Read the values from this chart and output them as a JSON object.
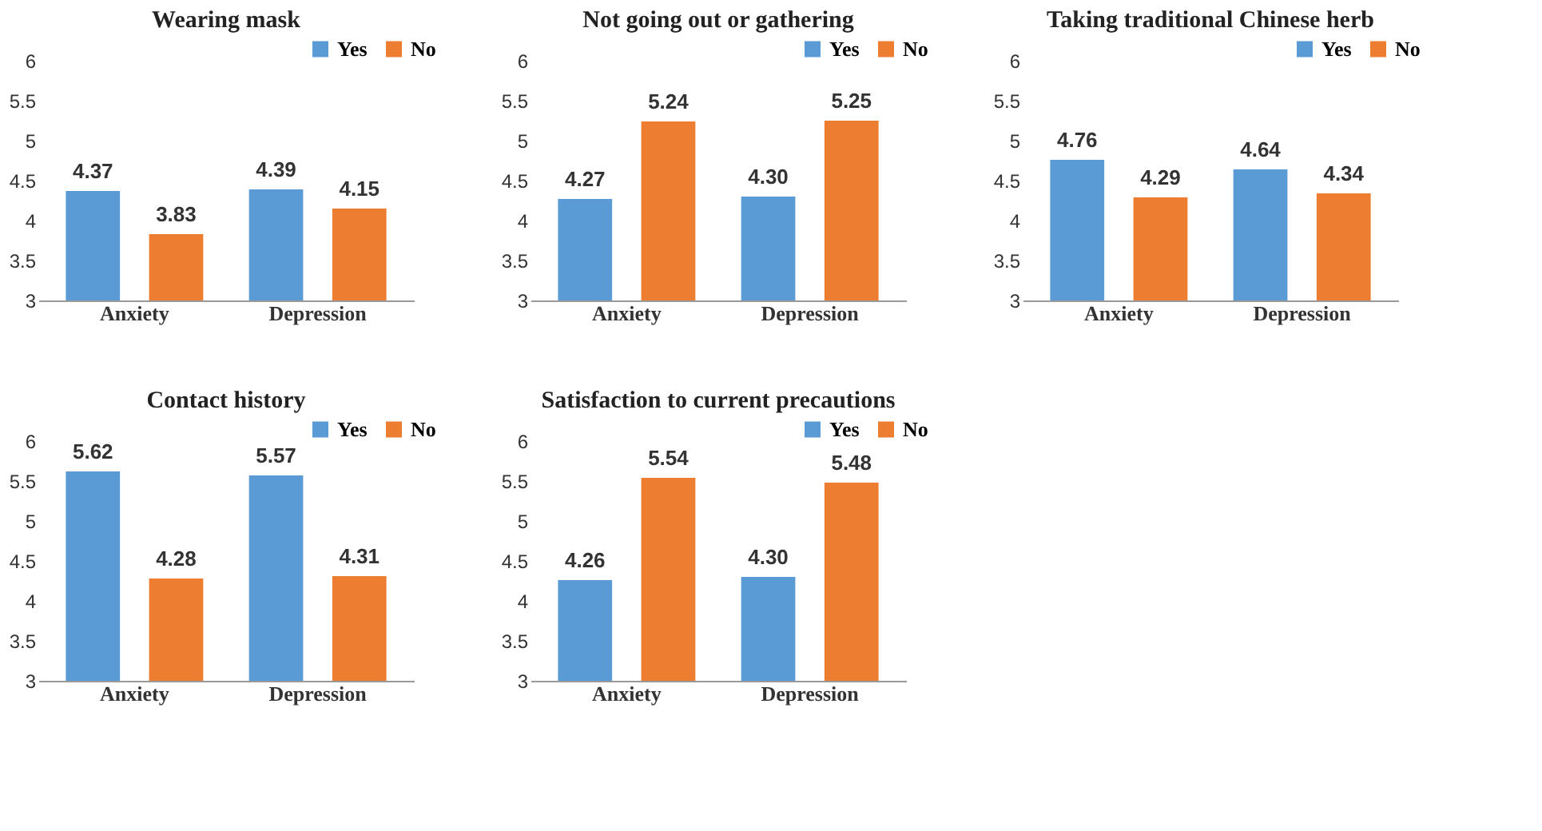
{
  "chart_data": [
    {
      "type": "bar",
      "title": "Wearing mask",
      "categories": [
        "Anxiety",
        "Depression"
      ],
      "ylim": [
        3,
        6
      ],
      "yticks": [
        3,
        3.5,
        4,
        4.5,
        5,
        5.5,
        6
      ],
      "legend": "top right",
      "grid": false,
      "series": [
        {
          "name": "Yes",
          "color": "#5b9bd5",
          "values": [
            4.37,
            4.39
          ],
          "value_labels": [
            "4.37",
            "4.39"
          ]
        },
        {
          "name": "No",
          "color": "#ed7d31",
          "values": [
            3.83,
            4.15
          ],
          "value_labels": [
            "3.83",
            "4.15"
          ]
        }
      ]
    },
    {
      "type": "bar",
      "title": "Not going out or gathering",
      "categories": [
        "Anxiety",
        "Depression"
      ],
      "ylim": [
        3,
        6
      ],
      "yticks": [
        3,
        3.5,
        4,
        4.5,
        5,
        5.5,
        6
      ],
      "legend": "top right",
      "grid": false,
      "series": [
        {
          "name": "Yes",
          "color": "#5b9bd5",
          "values": [
            4.27,
            4.3
          ],
          "value_labels": [
            "4.27",
            "4.30"
          ]
        },
        {
          "name": "No",
          "color": "#ed7d31",
          "values": [
            5.24,
            5.25
          ],
          "value_labels": [
            "5.24",
            "5.25"
          ]
        }
      ]
    },
    {
      "type": "bar",
      "title": "Taking traditional Chinese herb",
      "categories": [
        "Anxiety",
        "Depression"
      ],
      "ylim": [
        3,
        6
      ],
      "yticks": [
        3,
        3.5,
        4,
        4.5,
        5,
        5.5,
        6
      ],
      "legend": "top right",
      "grid": false,
      "series": [
        {
          "name": "Yes",
          "color": "#5b9bd5",
          "values": [
            4.76,
            4.64
          ],
          "value_labels": [
            "4.76",
            "4.64"
          ]
        },
        {
          "name": "No",
          "color": "#ed7d31",
          "values": [
            4.29,
            4.34
          ],
          "value_labels": [
            "4.29",
            "4.34"
          ]
        }
      ]
    },
    {
      "type": "bar",
      "title": "Contact history",
      "categories": [
        "Anxiety",
        "Depression"
      ],
      "ylim": [
        3,
        6
      ],
      "yticks": [
        3,
        3.5,
        4,
        4.5,
        5,
        5.5,
        6
      ],
      "legend": "top right",
      "grid": false,
      "series": [
        {
          "name": "Yes",
          "color": "#5b9bd5",
          "values": [
            5.62,
            5.57
          ],
          "value_labels": [
            "5.62",
            "5.57"
          ]
        },
        {
          "name": "No",
          "color": "#ed7d31",
          "values": [
            4.28,
            4.31
          ],
          "value_labels": [
            "4.28",
            "4.31"
          ]
        }
      ]
    },
    {
      "type": "bar",
      "title": "Satisfaction to current precautions",
      "categories": [
        "Anxiety",
        "Depression"
      ],
      "ylim": [
        3,
        6
      ],
      "yticks": [
        3,
        3.5,
        4,
        4.5,
        5,
        5.5,
        6
      ],
      "legend": "top right",
      "grid": false,
      "series": [
        {
          "name": "Yes",
          "color": "#5b9bd5",
          "values": [
            4.26,
            4.3
          ],
          "value_labels": [
            "4.26",
            "4.30"
          ]
        },
        {
          "name": "No",
          "color": "#ed7d31",
          "values": [
            5.54,
            5.48
          ],
          "value_labels": [
            "5.54",
            "5.48"
          ]
        }
      ]
    }
  ]
}
